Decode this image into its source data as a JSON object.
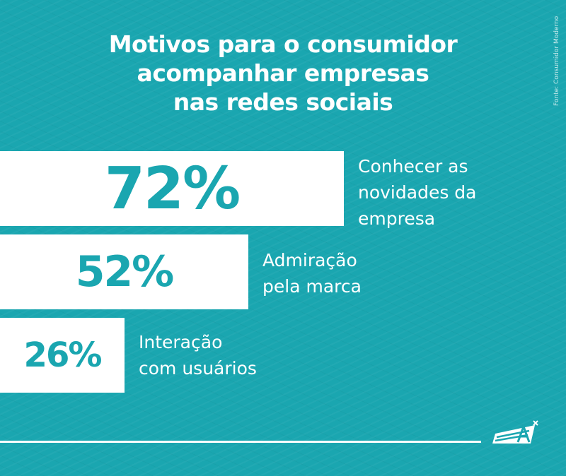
{
  "title_lines": [
    "Motivos para o consumidor",
    "acompanhar empresas",
    "nas redes sociais"
  ],
  "source": "Fonte: Consumidor Moderno",
  "chart_data": {
    "type": "bar",
    "orientation": "horizontal",
    "unit": "%",
    "xlim": [
      0,
      100
    ],
    "categories": [
      [
        "Conhecer as",
        "novidades da",
        "empresa"
      ],
      [
        "Admiração",
        "pela marca"
      ],
      [
        "Interação",
        "com usuários"
      ]
    ],
    "values": [
      72,
      52,
      26
    ],
    "value_labels": [
      "72%",
      "52%",
      "26%"
    ]
  },
  "colors": {
    "background": "#1aa6b0",
    "bar": "#ffffff",
    "value_text": "#1aa6b0"
  },
  "logo_icon": "paper-plane-logo-icon"
}
